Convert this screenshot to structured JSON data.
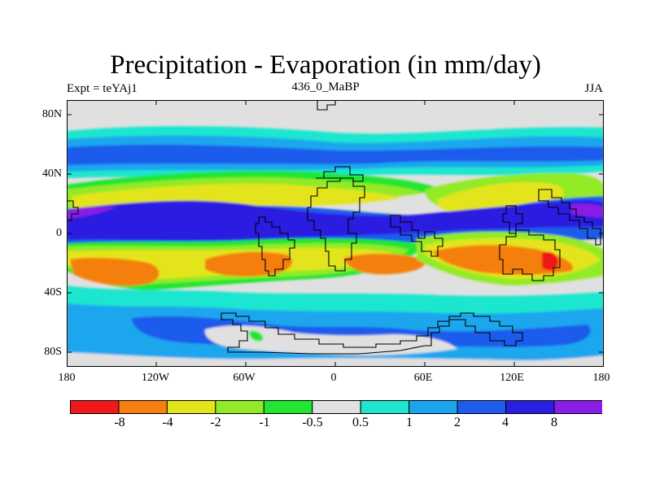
{
  "title": "Precipitation - Evaporation (in mm/day)",
  "subtitle_left": "Expt = teYAj1",
  "subtitle_center": "436_0_MaBP",
  "subtitle_right": "JJA",
  "y_ticks": [
    "80N",
    "40N",
    "0",
    "40S",
    "80S"
  ],
  "x_ticks": [
    "180",
    "120W",
    "60W",
    "0",
    "60E",
    "120E",
    "180"
  ],
  "colorbar": {
    "colors": [
      "#f01818",
      "#f57f0f",
      "#e4e41a",
      "#93ea28",
      "#22e632",
      "#e0e0e0",
      "#1fe6cf",
      "#1aa6ee",
      "#1f5cec",
      "#2a1ee0",
      "#8a1ee6"
    ],
    "labels": [
      "-8",
      "-4",
      "-2",
      "-1",
      "-0.5",
      "0.5",
      "1",
      "2",
      "4",
      "8"
    ]
  },
  "colors": {
    "background": "#e0e0e0",
    "coastline": "#000000"
  }
}
